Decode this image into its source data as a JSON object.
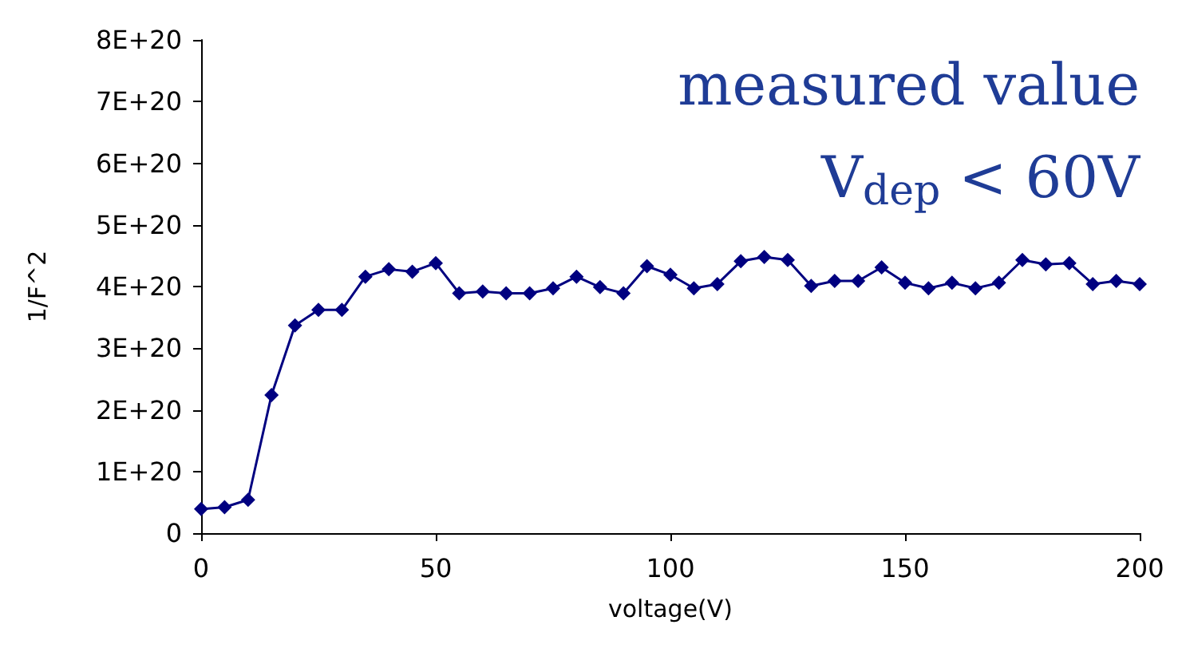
{
  "chart_data": {
    "type": "line",
    "xlabel": "voltage(V)",
    "ylabel": "1/F^2",
    "annotations": [
      "measured value",
      "V$_{dep}$ < 60V"
    ],
    "x": [
      0,
      5,
      10,
      15,
      20,
      25,
      30,
      35,
      40,
      45,
      50,
      55,
      60,
      65,
      70,
      75,
      80,
      85,
      90,
      95,
      100,
      105,
      110,
      115,
      120,
      125,
      130,
      135,
      140,
      145,
      150,
      155,
      160,
      165,
      170,
      175,
      180,
      185,
      190,
      195,
      200
    ],
    "series": [
      {
        "color": "#000080",
        "values": [
          3.9e+19,
          4.2e+19,
          5.4e+19,
          2.24e+20,
          3.37e+20,
          3.62e+20,
          3.62e+20,
          4.16e+20,
          4.28e+20,
          4.24e+20,
          4.38e+20,
          3.89e+20,
          3.92e+20,
          3.89e+20,
          3.89e+20,
          3.97e+20,
          4.16e+20,
          3.99e+20,
          3.89e+20,
          4.33e+20,
          4.19e+20,
          3.97e+20,
          4.04e+20,
          4.41e+20,
          4.48e+20,
          4.43e+20,
          4.01e+20,
          4.09e+20,
          4.09e+20,
          4.31e+20,
          4.06e+20,
          3.97e+20,
          4.06e+20,
          3.97e+20,
          4.06e+20,
          4.43e+20,
          4.36e+20,
          4.38e+20,
          4.04e+20,
          4.09e+20,
          4.04e+20
        ]
      }
    ],
    "xlim": [
      0,
      200
    ],
    "xticks": [
      0,
      50,
      100,
      150,
      200
    ],
    "ylim": [
      0,
      8e+20
    ],
    "yticks": [
      0,
      {
        "value": 1e+20,
        "label": "1E+20"
      },
      {
        "value": 2e+20,
        "label": "2E+20"
      },
      {
        "value": 3e+20,
        "label": "3E+20"
      },
      {
        "value": 4e+20,
        "label": "4E+20"
      },
      {
        "value": 5e+20,
        "label": "5E+20"
      },
      {
        "value": 6e+20,
        "label": "6E+20"
      },
      {
        "value": 7e+20,
        "label": "7E+20"
      },
      {
        "value": 8e+20,
        "label": "8E+20"
      }
    ],
    "grid": false,
    "marker": "diamond",
    "line_style": "solid"
  }
}
